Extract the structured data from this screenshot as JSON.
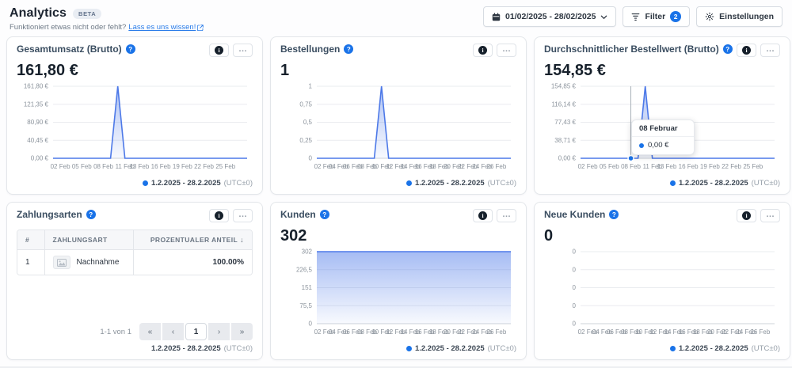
{
  "colors": {
    "accent": "#1a73e8",
    "chart_line": "#4d79e8",
    "card_border": "#e3e6ea"
  },
  "header": {
    "title": "Analytics",
    "beta_badge": "BETA",
    "subtitle_text": "Funktioniert etwas nicht oder fehlt?",
    "feedback_link": "Lass es uns wissen!",
    "date_range_button": "01/02/2025 - 28/02/2025",
    "filter_button": "Filter",
    "filter_count": "2",
    "settings_button": "Einstellungen"
  },
  "legend": {
    "date": "1.2.2025 - 28.2.2025",
    "utc": "(UTC±0)"
  },
  "icons": {
    "help": "?",
    "info": "i",
    "dots": "…",
    "sort_desc": "↓",
    "page_first": "«",
    "page_prev": "‹",
    "page_next": "›",
    "page_last": "»"
  },
  "cards": [
    {
      "title": "Gesamtumsatz (Brutto)",
      "value": "161,80 €"
    },
    {
      "title": "Bestellungen",
      "value": "1"
    },
    {
      "title": "Durchschnittlicher Bestellwert (Brutto)",
      "value": "154,85 €"
    },
    {
      "title": "Zahlungsarten",
      "table": {
        "headers": [
          "#",
          "ZAHLUNGSART",
          "PROZENTUALER ANTEIL"
        ],
        "rows": [
          {
            "index": "1",
            "name": "Nachnahme",
            "share": "100.00%"
          }
        ]
      },
      "pagination": {
        "label": "1-1 von 1",
        "page": "1"
      }
    },
    {
      "title": "Kunden",
      "value": "302"
    },
    {
      "title": "Neue Kunden",
      "value": "0"
    }
  ],
  "chart_data": [
    {
      "type": "line",
      "title": "Gesamtumsatz (Brutto)",
      "x_days": 28,
      "ylim": [
        0,
        161.8
      ],
      "y_ticks": [
        "161,80 €",
        "121,35 €",
        "80,90 €",
        "40,45 €",
        "0,00 €"
      ],
      "x_ticks": [
        {
          "d": 2,
          "label": "02 Feb"
        },
        {
          "d": 5,
          "label": "05 Feb"
        },
        {
          "d": 8,
          "label": "08 Feb"
        },
        {
          "d": 11,
          "label": "11 Feb"
        },
        {
          "d": 13,
          "label": "13 Feb"
        },
        {
          "d": 16,
          "label": "16 Feb"
        },
        {
          "d": 19,
          "label": "19 Feb"
        },
        {
          "d": 22,
          "label": "22 Feb"
        },
        {
          "d": 25,
          "label": "25 Feb"
        }
      ],
      "values": [
        0,
        0,
        0,
        0,
        0,
        0,
        0,
        0,
        0,
        161.8,
        0,
        0,
        0,
        0,
        0,
        0,
        0,
        0,
        0,
        0,
        0,
        0,
        0,
        0,
        0,
        0,
        0,
        0
      ]
    },
    {
      "type": "line",
      "title": "Bestellungen",
      "x_days": 28,
      "ylim": [
        0,
        1
      ],
      "y_ticks": [
        "1",
        "0,75",
        "0,5",
        "0,25",
        "0"
      ],
      "x_ticks": [
        {
          "d": 2,
          "label": "02 Feb"
        },
        {
          "d": 4,
          "label": "04 Feb"
        },
        {
          "d": 6,
          "label": "06 Feb"
        },
        {
          "d": 8,
          "label": "08 Feb"
        },
        {
          "d": 10,
          "label": "10 Feb"
        },
        {
          "d": 12,
          "label": "12 Feb"
        },
        {
          "d": 14,
          "label": "14 Feb"
        },
        {
          "d": 16,
          "label": "16 Feb"
        },
        {
          "d": 18,
          "label": "18 Feb"
        },
        {
          "d": 20,
          "label": "20 Feb"
        },
        {
          "d": 22,
          "label": "22 Feb"
        },
        {
          "d": 24,
          "label": "24 Feb"
        },
        {
          "d": 26,
          "label": "26 Feb"
        }
      ],
      "values": [
        0,
        0,
        0,
        0,
        0,
        0,
        0,
        0,
        0,
        1,
        0,
        0,
        0,
        0,
        0,
        0,
        0,
        0,
        0,
        0,
        0,
        0,
        0,
        0,
        0,
        0,
        0,
        0
      ]
    },
    {
      "type": "line",
      "title": "Durchschnittlicher Bestellwert (Brutto)",
      "x_days": 28,
      "ylim": [
        0,
        154.85
      ],
      "y_ticks": [
        "154,85 €",
        "116,14 €",
        "77,43 €",
        "38,71 €",
        "0,00 €"
      ],
      "x_ticks": [
        {
          "d": 2,
          "label": "02 Feb"
        },
        {
          "d": 5,
          "label": "05 Feb"
        },
        {
          "d": 8,
          "label": "08 Feb"
        },
        {
          "d": 11,
          "label": "11 Feb"
        },
        {
          "d": 13,
          "label": "13 Feb"
        },
        {
          "d": 16,
          "label": "16 Feb"
        },
        {
          "d": 19,
          "label": "19 Feb"
        },
        {
          "d": 22,
          "label": "22 Feb"
        },
        {
          "d": 25,
          "label": "25 Feb"
        }
      ],
      "values": [
        0,
        0,
        0,
        0,
        0,
        0,
        0,
        0,
        0,
        154.85,
        0,
        0,
        0,
        0,
        0,
        0,
        0,
        0,
        0,
        0,
        0,
        0,
        0,
        0,
        0,
        0,
        0,
        0
      ],
      "crosshair_day": 8,
      "tooltip": {
        "title": "08 Februar",
        "value": "0,00 €"
      }
    },
    {
      "type": "area",
      "title": "Kunden",
      "x_days": 28,
      "ylim": [
        0,
        302
      ],
      "y_ticks": [
        "302",
        "226,5",
        "151",
        "75,5",
        "0"
      ],
      "x_ticks": [
        {
          "d": 2,
          "label": "02 Feb"
        },
        {
          "d": 4,
          "label": "04 Feb"
        },
        {
          "d": 6,
          "label": "06 Feb"
        },
        {
          "d": 8,
          "label": "08 Feb"
        },
        {
          "d": 10,
          "label": "10 Feb"
        },
        {
          "d": 12,
          "label": "12 Feb"
        },
        {
          "d": 14,
          "label": "14 Feb"
        },
        {
          "d": 16,
          "label": "16 Feb"
        },
        {
          "d": 18,
          "label": "18 Feb"
        },
        {
          "d": 20,
          "label": "20 Feb"
        },
        {
          "d": 22,
          "label": "22 Feb"
        },
        {
          "d": 24,
          "label": "24 Feb"
        },
        {
          "d": 26,
          "label": "26 Feb"
        }
      ],
      "values": [
        302,
        302,
        302,
        302,
        302,
        302,
        302,
        302,
        302,
        302,
        302,
        302,
        302,
        302,
        302,
        302,
        302,
        302,
        302,
        302,
        302,
        302,
        302,
        302,
        302,
        302,
        302,
        302
      ]
    },
    {
      "type": "line",
      "title": "Neue Kunden",
      "x_days": 28,
      "ylim": [
        0,
        1
      ],
      "line_visible": false,
      "y_ticks": [
        "0",
        "0",
        "0",
        "0",
        "0"
      ],
      "x_ticks": [
        {
          "d": 2,
          "label": "02 Feb"
        },
        {
          "d": 4,
          "label": "04 Feb"
        },
        {
          "d": 6,
          "label": "06 Feb"
        },
        {
          "d": 8,
          "label": "08 Feb"
        },
        {
          "d": 10,
          "label": "10 Feb"
        },
        {
          "d": 12,
          "label": "12 Feb"
        },
        {
          "d": 14,
          "label": "14 Feb"
        },
        {
          "d": 16,
          "label": "16 Feb"
        },
        {
          "d": 18,
          "label": "18 Feb"
        },
        {
          "d": 20,
          "label": "20 Feb"
        },
        {
          "d": 22,
          "label": "22 Feb"
        },
        {
          "d": 24,
          "label": "24 Feb"
        },
        {
          "d": 26,
          "label": "26 Feb"
        }
      ],
      "values": [
        0,
        0,
        0,
        0,
        0,
        0,
        0,
        0,
        0,
        0,
        0,
        0,
        0,
        0,
        0,
        0,
        0,
        0,
        0,
        0,
        0,
        0,
        0,
        0,
        0,
        0,
        0,
        0
      ]
    }
  ]
}
